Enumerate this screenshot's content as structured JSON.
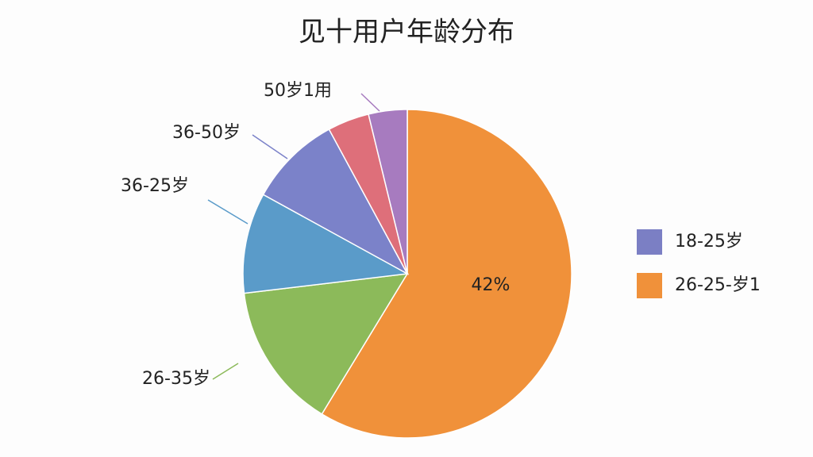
{
  "chart_data": {
    "type": "pie",
    "title": "见十用户年龄分布",
    "categories": [
      null,
      "26-35岁",
      "36-25岁",
      "36-50岁",
      null,
      "50岁1用"
    ],
    "values": [
      58.7,
      14.4,
      9.9,
      9.1,
      4.1,
      3.8
    ],
    "colors": [
      "#f0913a",
      "#8cba5a",
      "#5a9bc9",
      "#7b82c9",
      "#de6f7a",
      "#a77bbf"
    ],
    "annotation": "42%",
    "legend": [
      {
        "name": "18-25岁",
        "color": "#7b7fc4"
      },
      {
        "name": "26-25-岁1",
        "color": "#f0913a"
      }
    ]
  }
}
